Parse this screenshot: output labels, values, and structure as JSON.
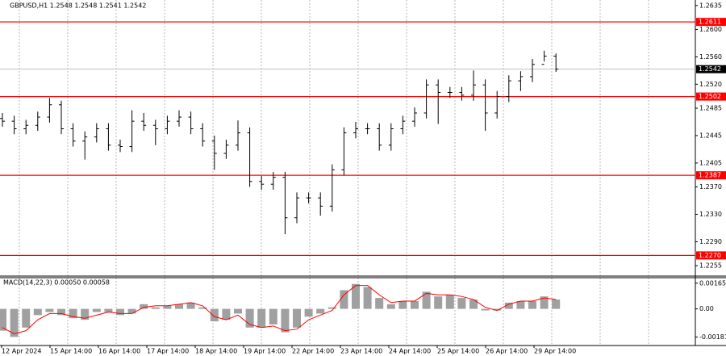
{
  "chart_data": [
    {
      "type": "candlestick",
      "title": "GBPUSD,H1  1.2548 1.2548 1.2541 1.2542",
      "color": "#000000",
      "open": [
        1.247,
        1.2466,
        1.2455,
        1.246,
        1.2472,
        1.249,
        1.2455,
        1.2437,
        1.2443,
        1.2455,
        1.2431,
        1.2429,
        1.2466,
        1.246,
        1.2455,
        1.2466,
        1.2472,
        1.2455,
        1.2437,
        1.2419,
        1.2431,
        1.2449,
        1.2378,
        1.2374,
        1.2384,
        1.2325,
        1.2354,
        1.2354,
        1.2342,
        1.2395,
        1.2449,
        1.2455,
        1.2455,
        1.2431,
        1.2455,
        1.2466,
        1.2478,
        1.2519,
        1.2508,
        1.2508,
        1.2504,
        1.2519,
        1.2478,
        1.2502,
        1.2525,
        1.2531,
        1.2549,
        1.2561
      ],
      "high": [
        1.2478,
        1.2474,
        1.2468,
        1.248,
        1.25,
        1.2496,
        1.2463,
        1.2451,
        1.2463,
        1.2463,
        1.2439,
        1.2482,
        1.2478,
        1.2468,
        1.2474,
        1.2482,
        1.248,
        1.2463,
        1.2445,
        1.2439,
        1.2467,
        1.2457,
        1.2386,
        1.2392,
        1.2392,
        1.2362,
        1.2362,
        1.2362,
        1.2403,
        1.2457,
        1.2465,
        1.2463,
        1.2463,
        1.2463,
        1.2474,
        1.2486,
        1.2527,
        1.2527,
        1.2516,
        1.2516,
        1.254,
        1.2527,
        1.251,
        1.2533,
        1.2539,
        1.2557,
        1.2569,
        1.2565
      ],
      "low": [
        1.2458,
        1.2447,
        1.2447,
        1.2452,
        1.2464,
        1.2447,
        1.2429,
        1.241,
        1.2435,
        1.2423,
        1.2421,
        1.2421,
        1.2452,
        1.2431,
        1.2447,
        1.2458,
        1.2447,
        1.2429,
        1.2395,
        1.2411,
        1.2423,
        1.237,
        1.2366,
        1.2366,
        1.2301,
        1.2317,
        1.2346,
        1.2328,
        1.2334,
        1.2387,
        1.2441,
        1.2447,
        1.2423,
        1.2423,
        1.2447,
        1.2458,
        1.247,
        1.2462,
        1.25,
        1.2496,
        1.2496,
        1.2452,
        1.247,
        1.2494,
        1.251,
        1.2523,
        1.2553,
        1.2538
      ],
      "close": [
        1.2466,
        1.2455,
        1.246,
        1.2472,
        1.249,
        1.2455,
        1.2437,
        1.2443,
        1.2455,
        1.2431,
        1.2429,
        1.2466,
        1.246,
        1.2455,
        1.2466,
        1.2472,
        1.2455,
        1.2437,
        1.2419,
        1.2431,
        1.2449,
        1.2378,
        1.2374,
        1.2384,
        1.2325,
        1.2354,
        1.2354,
        1.2342,
        1.2395,
        1.2449,
        1.2455,
        1.2455,
        1.2431,
        1.2455,
        1.2466,
        1.2478,
        1.2519,
        1.2508,
        1.2508,
        1.2504,
        1.2519,
        1.2478,
        1.2502,
        1.2525,
        1.2531,
        1.2549,
        1.2561,
        1.2542
      ],
      "ylim": [
        1.2241,
        1.2643
      ],
      "yticks": [
        1.2635,
        {
          "value": 1.26,
          "label": "1.2600"
        },
        {
          "value": 1.256,
          "label": "1.2560"
        },
        {
          "value": 1.252,
          "label": "1.2520"
        },
        1.2485,
        1.2445,
        1.2405,
        {
          "value": 1.237,
          "label": "1.2370"
        },
        {
          "value": 1.233,
          "label": "1.2330"
        },
        {
          "value": 1.229,
          "label": "1.2290"
        },
        1.2255
      ],
      "levels": [
        1.2611,
        1.2502,
        1.2387,
        {
          "value": 1.227,
          "label": "1.2270"
        }
      ],
      "level_color": "#ff0000",
      "last_price": 1.2542,
      "xtick_labels": [
        "12 Apr 2024",
        "15 Apr 14:00",
        "16 Apr 14:00",
        "17 Apr 14:00",
        "18 Apr 14:00",
        "19 Apr 14:00",
        "22 Apr 14:00",
        "23 Apr 14:00",
        "24 Apr 14:00",
        "25 Apr 14:00",
        "26 Apr 14:00",
        "29 Apr 14:00"
      ]
    },
    {
      "type": "macd",
      "title": "MACD(14,22,3) 0.00050 0.00058",
      "color": "#a0a0a0",
      "values": [
        -0.0014,
        -0.0018,
        -0.0012,
        -0.0004,
        -0.0002,
        -0.0004,
        -0.0006,
        -0.0007,
        -0.0002,
        -0.0002,
        -0.0004,
        -0.0003,
        0.0003,
        0.0001,
        0.0002,
        0.0003,
        0.0004,
        0.0001,
        -0.0008,
        -0.0007,
        -0.0003,
        -0.0012,
        -0.0012,
        -0.001,
        -0.0015,
        -0.0012,
        -0.0005,
        -0.0003,
        0.0001,
        0.0012,
        0.0016,
        0.0014,
        0.0007,
        0.0003,
        0.0005,
        0.0005,
        0.0011,
        0.0008,
        0.0009,
        0.0007,
        0.0006,
        -0.0001,
        -0.0001,
        0.0004,
        0.0005,
        0.0005,
        0.0008,
        0.0006
      ],
      "signal": {
        "color": "#ff0000",
        "values": [
          -0.0012,
          -0.0016,
          -0.0014,
          -0.0007,
          -0.0003,
          -0.0003,
          -0.0005,
          -0.0006,
          -0.0004,
          -0.0002,
          -0.0003,
          -0.0003,
          0.0001,
          0.0002,
          0.0002,
          0.0003,
          0.0004,
          0.0002,
          -0.0005,
          -0.0007,
          -0.0004,
          -0.001,
          -0.0012,
          -0.0011,
          -0.0014,
          -0.0013,
          -0.0007,
          -0.0004,
          -0.0001,
          0.0009,
          0.0015,
          0.0015,
          0.0009,
          0.0004,
          0.0005,
          0.0005,
          0.001,
          0.0009,
          0.0009,
          0.0008,
          0.0006,
          0.0001,
          -0.0001,
          0.0003,
          0.0005,
          0.0005,
          0.0007,
          0.0006
        ]
      },
      "ylim": [
        -0.0023,
        0.00195
      ],
      "yticks": [
        0.00165,
        {
          "value": 0,
          "label": "0.00"
        },
        -0.00181
      ]
    }
  ]
}
